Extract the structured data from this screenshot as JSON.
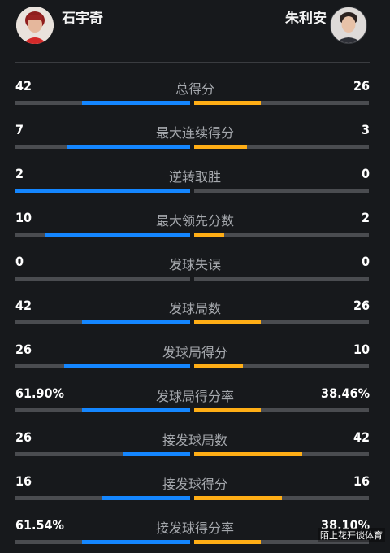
{
  "players": {
    "left": {
      "name": "石宇奇",
      "avatar_icon": "player-photo-icon"
    },
    "right": {
      "name": "朱利安",
      "avatar_icon": "player-photo-icon"
    }
  },
  "colors": {
    "left_bar": "#1486ff",
    "right_bar": "#ffae16",
    "track": "#4a4c50"
  },
  "stats": [
    {
      "label": "总得分",
      "left": "42",
      "right": "26",
      "left_share": 0.62,
      "right_share": 0.38
    },
    {
      "label": "最大连续得分",
      "left": "7",
      "right": "3",
      "left_share": 0.7,
      "right_share": 0.3
    },
    {
      "label": "逆转取胜",
      "left": "2",
      "right": "0",
      "left_share": 1.0,
      "right_share": 0.0
    },
    {
      "label": "最大领先分数",
      "left": "10",
      "right": "2",
      "left_share": 0.83,
      "right_share": 0.17
    },
    {
      "label": "发球失误",
      "left": "0",
      "right": "0",
      "left_share": 0.0,
      "right_share": 0.0
    },
    {
      "label": "发球局数",
      "left": "42",
      "right": "26",
      "left_share": 0.62,
      "right_share": 0.38
    },
    {
      "label": "发球局得分",
      "left": "26",
      "right": "10",
      "left_share": 0.72,
      "right_share": 0.28
    },
    {
      "label": "发球局得分率",
      "left": "61.90%",
      "right": "38.46%",
      "left_share": 0.62,
      "right_share": 0.38
    },
    {
      "label": "接发球局数",
      "left": "26",
      "right": "42",
      "left_share": 0.38,
      "right_share": 0.62
    },
    {
      "label": "接发球得分",
      "left": "16",
      "right": "16",
      "left_share": 0.5,
      "right_share": 0.5
    },
    {
      "label": "接发球得分率",
      "left": "61.54%",
      "right": "38.10%",
      "left_share": 0.62,
      "right_share": 0.38
    }
  ],
  "watermark": "陌上花开谈体育"
}
